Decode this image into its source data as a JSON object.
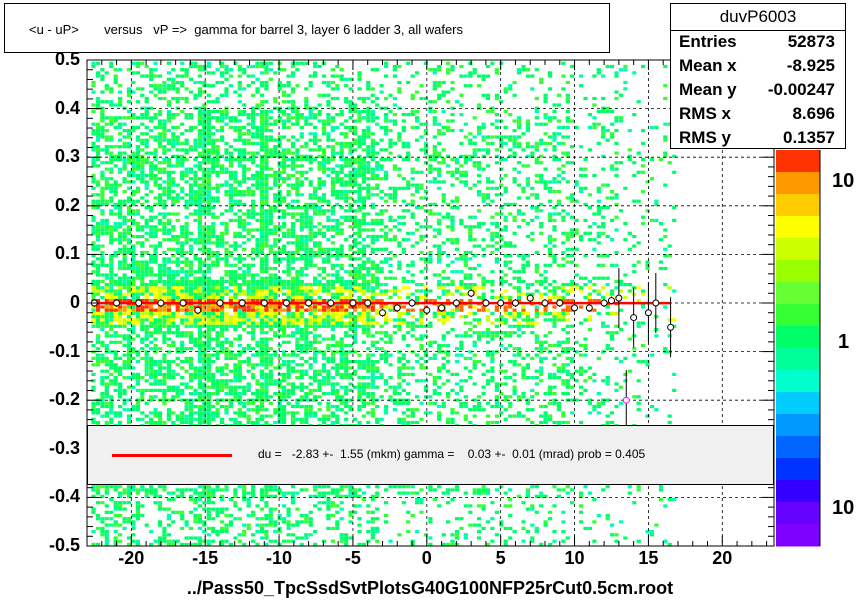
{
  "title": "<u - uP>       versus   vP =>  gamma for barrel 3, layer 6 ladder 3, all wafers",
  "stats": {
    "name": "duvP6003",
    "rows": [
      {
        "label": "Entries",
        "value": "52873"
      },
      {
        "label": "Mean x",
        "value": "-8.925"
      },
      {
        "label": "Mean y",
        "value": "-0.00247"
      },
      {
        "label": "RMS x",
        "value": "8.696"
      },
      {
        "label": "RMS y",
        "value": "0.1357"
      }
    ]
  },
  "fit": {
    "text": "du =   -2.83 +-  1.55 (mkm) gamma =    0.03 +-  0.01 (mrad) prob = 0.405",
    "color": "#ff0000"
  },
  "x_axis": {
    "title": "../Pass50_TpcSsdSvtPlotsG40G100NFP25rCut0.5cm.root",
    "ticks": [
      "-20",
      "-15",
      "-10",
      "-5",
      "0",
      "5",
      "10",
      "15",
      "20"
    ],
    "tick_values": [
      -20,
      -15,
      -10,
      -5,
      0,
      5,
      10,
      15,
      20
    ]
  },
  "y_axis": {
    "ticks": [
      "0.5",
      "0.4",
      "0.3",
      "0.2",
      "0.1",
      "0",
      "-0.1",
      "-0.2",
      "-0.3",
      "-0.4",
      "-0.5"
    ],
    "tick_values": [
      0.5,
      0.4,
      0.3,
      0.2,
      0.1,
      0,
      -0.1,
      -0.2,
      -0.3,
      -0.4,
      -0.5
    ]
  },
  "z_axis": {
    "labels": [
      "10",
      "1",
      "10"
    ]
  },
  "chart_data": {
    "type": "heatmap",
    "title": "<u - uP>       versus   vP =>  gamma for barrel 3, layer 6 ladder 3, all wafers",
    "xlabel": "../Pass50_TpcSsdSvtPlotsG40G100NFP25rCut0.5cm.root",
    "ylabel": "",
    "xlim": [
      -23,
      23.5
    ],
    "ylim": [
      -0.5,
      0.5
    ],
    "grid": true,
    "legend": "top-right",
    "fit_line": {
      "du_mkm": -2.83,
      "du_err": 1.55,
      "gamma_mrad": 0.03,
      "gamma_err": 0.01,
      "prob": 0.405,
      "x_range": [
        -22.5,
        16.5
      ]
    },
    "profile_points": [
      {
        "x": -22.5,
        "y": 0.0
      },
      {
        "x": -21.0,
        "y": 0.0
      },
      {
        "x": -19.5,
        "y": 0.0
      },
      {
        "x": -18.0,
        "y": 0.0
      },
      {
        "x": -16.5,
        "y": 0.0
      },
      {
        "x": -15.5,
        "y": -0.015
      },
      {
        "x": -14.0,
        "y": 0.0
      },
      {
        "x": -12.5,
        "y": 0.0
      },
      {
        "x": -11.0,
        "y": 0.0
      },
      {
        "x": -9.5,
        "y": 0.0
      },
      {
        "x": -8.0,
        "y": 0.0
      },
      {
        "x": -6.5,
        "y": 0.0
      },
      {
        "x": -5.0,
        "y": 0.0
      },
      {
        "x": -4.0,
        "y": 0.0
      },
      {
        "x": -3.0,
        "y": -0.02
      },
      {
        "x": -2.0,
        "y": -0.01
      },
      {
        "x": -1.0,
        "y": 0.0
      },
      {
        "x": 0.0,
        "y": -0.015
      },
      {
        "x": 1.0,
        "y": -0.01
      },
      {
        "x": 2.0,
        "y": 0.0
      },
      {
        "x": 3.0,
        "y": 0.02
      },
      {
        "x": 4.0,
        "y": 0.0
      },
      {
        "x": 5.0,
        "y": 0.0
      },
      {
        "x": 6.0,
        "y": 0.0
      },
      {
        "x": 7.0,
        "y": 0.01
      },
      {
        "x": 8.0,
        "y": 0.0
      },
      {
        "x": 9.0,
        "y": 0.0
      },
      {
        "x": 10.0,
        "y": -0.01
      },
      {
        "x": 11.0,
        "y": -0.01
      },
      {
        "x": 12.0,
        "y": 0.0
      },
      {
        "x": 12.5,
        "y": 0.005
      },
      {
        "x": 13.0,
        "y": 0.01
      },
      {
        "x": 13.5,
        "y": -0.2
      },
      {
        "x": 14.0,
        "y": -0.03
      },
      {
        "x": 15.0,
        "y": -0.02
      },
      {
        "x": 15.5,
        "y": 0.0
      },
      {
        "x": 16.5,
        "y": -0.05
      }
    ],
    "colors": {
      "low": "#00ff80",
      "mid": "#ffff00",
      "high": "#ff0000",
      "palette_bottom": "#8000ff"
    }
  }
}
